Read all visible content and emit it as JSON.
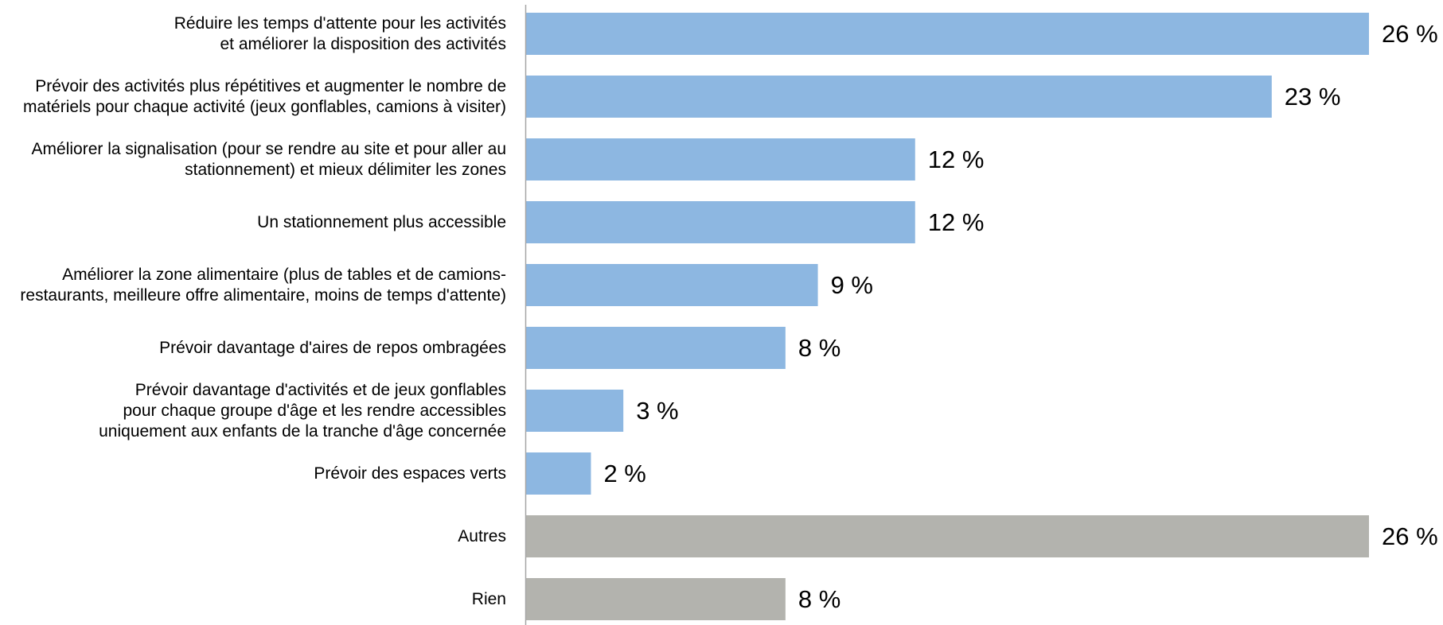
{
  "colors": {
    "main": "#8db7e1",
    "other": "#b3b3ae",
    "axis": "#a6a6a6"
  },
  "chart_data": {
    "type": "bar",
    "orientation": "horizontal",
    "unit": "%",
    "xlim": [
      0,
      26
    ],
    "grid": false,
    "legend": "none",
    "categories": [
      "Réduire les temps d'attente pour les activités\net améliorer la disposition des activités",
      "Prévoir des activités plus répétitives et augmenter le nombre de\nmatériels pour chaque activité (jeux gonflables, camions à visiter)",
      "Améliorer la signalisation (pour se rendre au site et pour aller au\nstationnement) et mieux délimiter les zones",
      "Un stationnement plus accessible",
      "Améliorer la zone alimentaire (plus de tables et de camions-\nrestaurants, meilleure offre alimentaire, moins de temps d'attente)",
      "Prévoir davantage d'aires de repos ombragées",
      "Prévoir davantage d'activités et de jeux gonflables\npour chaque groupe d'âge et les rendre accessibles\nuniquement aux enfants de la tranche d'âge concernée",
      "Prévoir des espaces verts",
      "Autres",
      "Rien"
    ],
    "values": [
      26,
      23,
      12,
      12,
      9,
      8,
      3,
      2,
      26,
      8
    ],
    "value_labels": [
      "26 %",
      "23 %",
      "12 %",
      "12 %",
      "9 %",
      "8 %",
      "3 %",
      "2 %",
      "26 %",
      "8 %"
    ],
    "bar_color_keys": [
      "main",
      "main",
      "main",
      "main",
      "main",
      "main",
      "main",
      "main",
      "other",
      "other"
    ]
  }
}
